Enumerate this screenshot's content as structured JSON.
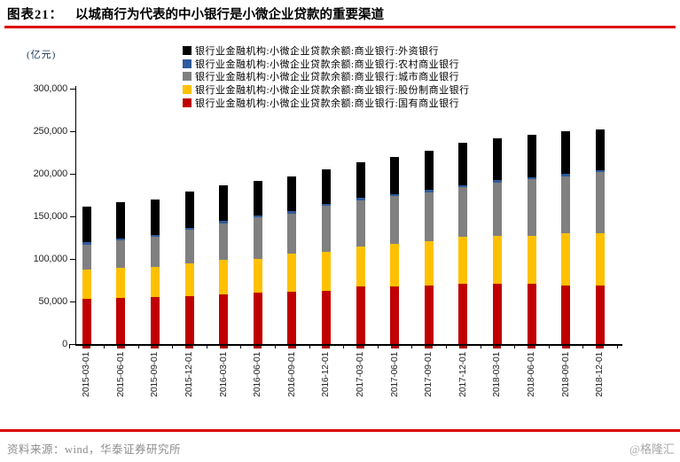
{
  "header": {
    "figure_label": "图表21：",
    "figure_title": "以城商行为代表的中小银行是小微企业贷款的重要渠道"
  },
  "footer": {
    "source": "资料来源：wind，华泰证券研究所",
    "watermark": "@格隆汇"
  },
  "colors": {
    "accent_rule_red": "#DD0000",
    "bar_state_owned_red": "#C00000",
    "bar_joint_stock_yellow": "#FFC000",
    "bar_city_gray": "#808080",
    "bar_rural_blue": "#2F5A9B",
    "bar_foreign_black": "#000000",
    "source_text_gray": "#8C8C8C"
  },
  "chart_data": {
    "type": "bar",
    "stacked": true,
    "title": "",
    "unit_label": "(亿元)",
    "xlabel": "",
    "ylabel": "(亿元)",
    "ylim": [
      0,
      300000
    ],
    "ytick_step": 50000,
    "ytick_labels": [
      "0",
      "50,000",
      "100,000",
      "150,000",
      "200,000",
      "250,000",
      "300,000"
    ],
    "grid": false,
    "legend_position": "top-center",
    "legend": [
      {
        "label": "银行业金融机构:小微企业贷款余额:商业银行:外资银行",
        "color": "#000000"
      },
      {
        "label": "银行业金融机构:小微企业贷款余额:商业银行:农村商业银行",
        "color": "#2F5A9B"
      },
      {
        "label": "银行业金融机构:小微企业贷款余额:商业银行:城市商业银行",
        "color": "#808080"
      },
      {
        "label": "银行业金融机构:小微企业贷款余额:商业银行:股份制商业银行",
        "color": "#FFC000"
      },
      {
        "label": "银行业金融机构:小微企业贷款余额:商业银行:国有商业银行",
        "color": "#C00000"
      }
    ],
    "categories": [
      "2015-03-01",
      "2015-06-01",
      "2015-09-01",
      "2015-12-01",
      "2016-03-01",
      "2016-06-01",
      "2016-09-01",
      "2016-12-01",
      "2017-03-01",
      "2017-06-01",
      "2017-09-01",
      "2017-12-01",
      "2018-03-01",
      "2018-06-01",
      "2018-09-01",
      "2018-12-01"
    ],
    "stack_order": "bottom_to_top",
    "series": [
      {
        "name": "银行业金融机构:小微企业贷款余额:商业银行:国有商业银行",
        "color": "#C00000",
        "values": [
          53000,
          54500,
          55000,
          56500,
          58500,
          60500,
          61000,
          62000,
          67500,
          67500,
          69000,
          71000,
          71000,
          70500,
          69000,
          68500
        ]
      },
      {
        "name": "银行业金融机构:小微企业贷款余额:商业银行:股份制商业银行",
        "color": "#FFC000",
        "values": [
          34000,
          35000,
          35500,
          38500,
          40000,
          40000,
          45500,
          46500,
          47500,
          50000,
          52000,
          55500,
          56500,
          57000,
          61000,
          61500
        ]
      },
      {
        "name": "银行业金融机构:小微企业贷款余额:商业银行:城市商业银行",
        "color": "#808080",
        "values": [
          30000,
          32000,
          35500,
          39000,
          43500,
          48000,
          47000,
          53500,
          54000,
          56500,
          57500,
          58000,
          62500,
          66000,
          66500,
          72000
        ]
      },
      {
        "name": "银行业金融机构:小微企业贷款余额:商业银行:农村商业银行",
        "color": "#2F5A9B",
        "values": [
          2500,
          2500,
          2500,
          2500,
          2500,
          2500,
          2500,
          2500,
          2500,
          2500,
          2500,
          2000,
          2500,
          2500,
          3000,
          2500
        ]
      },
      {
        "name": "银行业金融机构:小微企业贷款余额:商业银行:外资银行",
        "color": "#000000",
        "values": [
          42000,
          42500,
          41500,
          43000,
          41500,
          40500,
          41000,
          40500,
          42500,
          43500,
          46000,
          49500,
          49500,
          49500,
          50500,
          48000
        ]
      }
    ]
  }
}
